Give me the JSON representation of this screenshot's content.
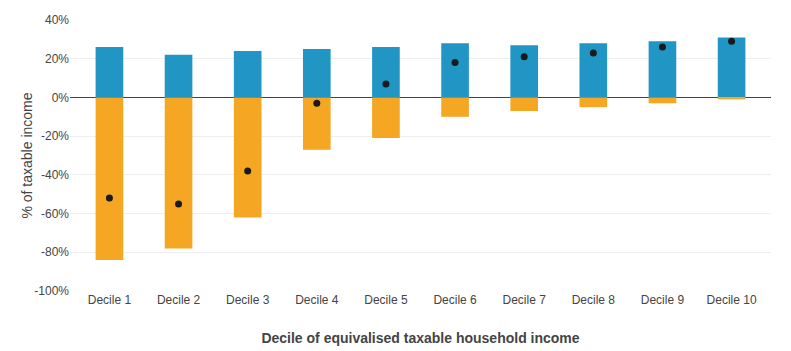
{
  "chart_data": {
    "type": "bar",
    "xlabel": "Decile of equivalised taxable household income",
    "ylabel": "% of taxable income",
    "categories": [
      "Decile 1",
      "Decile 2",
      "Decile 3",
      "Decile 4",
      "Decile 5",
      "Decile 6",
      "Decile 7",
      "Decile 8",
      "Decile 9",
      "Decile 10"
    ],
    "series": [
      {
        "type": "bar",
        "color": "#2196C4",
        "values": [
          26,
          22,
          24,
          25,
          26,
          28,
          27,
          28,
          29,
          31
        ]
      },
      {
        "type": "bar",
        "color": "#F5A623",
        "values": [
          -84,
          -78,
          -62,
          -27,
          -21,
          -10,
          -7,
          -5,
          -3,
          -1
        ]
      },
      {
        "type": "scatter",
        "color": "#1a1a1a",
        "marker": "circle",
        "values": [
          -52,
          -55,
          -38,
          -3,
          7,
          18,
          21,
          23,
          26,
          29
        ]
      }
    ],
    "ylim": [
      -100,
      40
    ],
    "yticks": [
      {
        "value": -100,
        "label": "-100%"
      },
      {
        "value": -80,
        "label": "-80%"
      },
      {
        "value": -60,
        "label": "-60%"
      },
      {
        "value": -40,
        "label": "-40%"
      },
      {
        "value": -20,
        "label": "-20%"
      },
      {
        "value": 0,
        "label": "0%"
      },
      {
        "value": 20,
        "label": "20%"
      },
      {
        "value": 40,
        "label": "40%"
      }
    ],
    "grid": true
  }
}
